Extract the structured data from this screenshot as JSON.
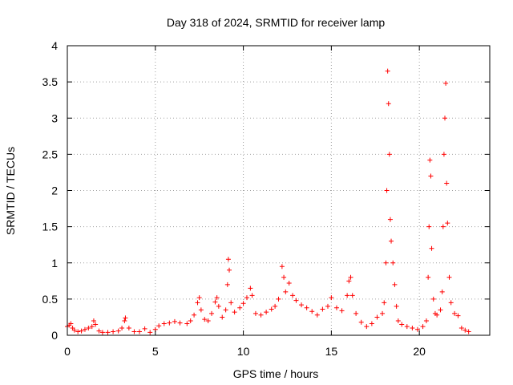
{
  "chart_data": {
    "type": "scatter",
    "title": "Day 318 of 2024, SRMTID for receiver lamp",
    "xlabel": "GPS time / hours",
    "ylabel": "SRMTID / TECUs",
    "xlim": [
      0,
      24
    ],
    "ylim": [
      0,
      4
    ],
    "x_ticks": [
      0,
      5,
      10,
      15,
      20
    ],
    "x_tick_labels": [
      "0",
      "5",
      "10",
      "15",
      "20"
    ],
    "y_ticks": [
      0,
      0.5,
      1,
      1.5,
      2,
      2.5,
      3,
      3.5,
      4
    ],
    "y_tick_labels": [
      "0",
      "0.5",
      "1",
      "1.5",
      "2",
      "2.5",
      "3",
      "3.5",
      "4"
    ],
    "grid": true,
    "marker": "+",
    "series_color": "#ff0000",
    "series": [
      {
        "name": "SRMTID",
        "points": [
          [
            0.0,
            0.12
          ],
          [
            0.1,
            0.14
          ],
          [
            0.2,
            0.16
          ],
          [
            0.3,
            0.1
          ],
          [
            0.4,
            0.07
          ],
          [
            0.6,
            0.05
          ],
          [
            0.8,
            0.06
          ],
          [
            1.0,
            0.08
          ],
          [
            1.2,
            0.1
          ],
          [
            1.4,
            0.12
          ],
          [
            1.5,
            0.2
          ],
          [
            1.6,
            0.15
          ],
          [
            1.8,
            0.06
          ],
          [
            2.0,
            0.04
          ],
          [
            2.3,
            0.04
          ],
          [
            2.6,
            0.05
          ],
          [
            2.9,
            0.06
          ],
          [
            3.1,
            0.1
          ],
          [
            3.25,
            0.2
          ],
          [
            3.3,
            0.24
          ],
          [
            3.5,
            0.1
          ],
          [
            3.8,
            0.05
          ],
          [
            4.1,
            0.05
          ],
          [
            4.4,
            0.09
          ],
          [
            4.7,
            0.04
          ],
          [
            5.0,
            0.08
          ],
          [
            5.2,
            0.13
          ],
          [
            5.5,
            0.16
          ],
          [
            5.8,
            0.17
          ],
          [
            6.1,
            0.19
          ],
          [
            6.4,
            0.17
          ],
          [
            6.8,
            0.16
          ],
          [
            7.0,
            0.2
          ],
          [
            7.2,
            0.28
          ],
          [
            7.4,
            0.45
          ],
          [
            7.5,
            0.52
          ],
          [
            7.6,
            0.35
          ],
          [
            7.8,
            0.22
          ],
          [
            8.0,
            0.2
          ],
          [
            8.2,
            0.3
          ],
          [
            8.4,
            0.46
          ],
          [
            8.5,
            0.52
          ],
          [
            8.6,
            0.4
          ],
          [
            8.8,
            0.25
          ],
          [
            9.0,
            0.35
          ],
          [
            9.1,
            0.7
          ],
          [
            9.15,
            1.05
          ],
          [
            9.2,
            0.9
          ],
          [
            9.3,
            0.45
          ],
          [
            9.5,
            0.32
          ],
          [
            9.8,
            0.38
          ],
          [
            10.0,
            0.44
          ],
          [
            10.2,
            0.52
          ],
          [
            10.4,
            0.65
          ],
          [
            10.5,
            0.55
          ],
          [
            10.7,
            0.3
          ],
          [
            11.0,
            0.28
          ],
          [
            11.3,
            0.32
          ],
          [
            11.6,
            0.36
          ],
          [
            11.8,
            0.4
          ],
          [
            12.0,
            0.5
          ],
          [
            12.2,
            0.95
          ],
          [
            12.3,
            0.8
          ],
          [
            12.4,
            0.6
          ],
          [
            12.6,
            0.72
          ],
          [
            12.8,
            0.55
          ],
          [
            13.0,
            0.48
          ],
          [
            13.3,
            0.42
          ],
          [
            13.6,
            0.38
          ],
          [
            13.9,
            0.33
          ],
          [
            14.2,
            0.28
          ],
          [
            14.5,
            0.36
          ],
          [
            14.8,
            0.4
          ],
          [
            15.0,
            0.52
          ],
          [
            15.3,
            0.38
          ],
          [
            15.6,
            0.34
          ],
          [
            15.9,
            0.55
          ],
          [
            16.0,
            0.75
          ],
          [
            16.1,
            0.8
          ],
          [
            16.2,
            0.55
          ],
          [
            16.4,
            0.3
          ],
          [
            16.7,
            0.18
          ],
          [
            17.0,
            0.12
          ],
          [
            17.3,
            0.16
          ],
          [
            17.6,
            0.25
          ],
          [
            17.9,
            0.3
          ],
          [
            18.0,
            0.45
          ],
          [
            18.1,
            1.0
          ],
          [
            18.15,
            2.0
          ],
          [
            18.2,
            3.65
          ],
          [
            18.25,
            3.2
          ],
          [
            18.3,
            2.5
          ],
          [
            18.35,
            1.6
          ],
          [
            18.4,
            1.3
          ],
          [
            18.5,
            1.0
          ],
          [
            18.6,
            0.7
          ],
          [
            18.7,
            0.4
          ],
          [
            18.8,
            0.2
          ],
          [
            19.0,
            0.15
          ],
          [
            19.3,
            0.12
          ],
          [
            19.6,
            0.1
          ],
          [
            19.9,
            0.08
          ],
          [
            20.2,
            0.12
          ],
          [
            20.4,
            0.2
          ],
          [
            20.5,
            0.8
          ],
          [
            20.55,
            1.5
          ],
          [
            20.6,
            2.42
          ],
          [
            20.65,
            2.2
          ],
          [
            20.7,
            1.2
          ],
          [
            20.8,
            0.5
          ],
          [
            20.9,
            0.3
          ],
          [
            21.0,
            0.28
          ],
          [
            21.2,
            0.35
          ],
          [
            21.3,
            0.6
          ],
          [
            21.35,
            1.5
          ],
          [
            21.4,
            2.5
          ],
          [
            21.45,
            3.0
          ],
          [
            21.5,
            3.48
          ],
          [
            21.55,
            2.1
          ],
          [
            21.6,
            1.55
          ],
          [
            21.7,
            0.8
          ],
          [
            21.8,
            0.45
          ],
          [
            22.0,
            0.3
          ],
          [
            22.2,
            0.27
          ],
          [
            22.4,
            0.1
          ],
          [
            22.6,
            0.07
          ],
          [
            22.8,
            0.05
          ]
        ]
      }
    ]
  }
}
